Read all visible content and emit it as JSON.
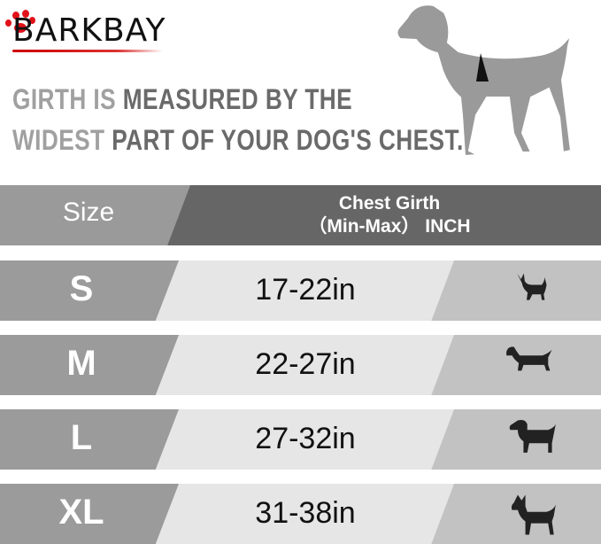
{
  "brand": {
    "logo_text": "BARKBAY",
    "accent": "#e2121a"
  },
  "headline": {
    "line1_light": "GIRTH IS",
    "line1_dark": "MEASURED BY THE",
    "line2_light": "WIDEST",
    "line2_dark": "PART OF YOUR DOG'S CHEST."
  },
  "table": {
    "header": {
      "size": "Size",
      "girth_line1": "Chest Girth",
      "girth_line2": "（Min-Max） INCH"
    },
    "rows": [
      {
        "size": "S",
        "girth": "17-22in",
        "icon": "chihuahua-icon"
      },
      {
        "size": "M",
        "girth": "22-27in",
        "icon": "dachshund-icon"
      },
      {
        "size": "L",
        "girth": "27-32in",
        "icon": "labrador-icon"
      },
      {
        "size": "XL",
        "girth": "31-38in",
        "icon": "great-dane-icon"
      }
    ],
    "colors": {
      "size_band": "#9b9b9b",
      "girth_band": "#e6e6e6",
      "icon_band": "#c2c2c2",
      "header_dark": "#666666",
      "header_light": "#9a9a9a"
    }
  }
}
